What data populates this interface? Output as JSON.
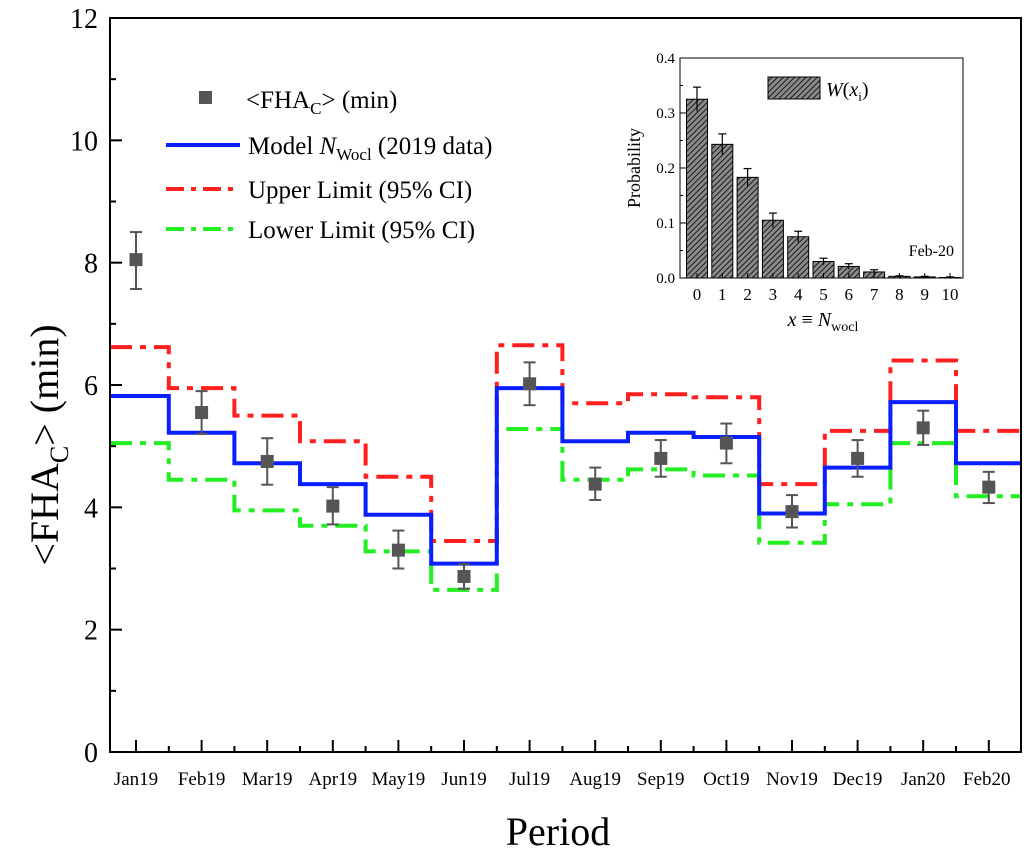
{
  "chart_data": [
    {
      "type": "line",
      "categories": [
        "Jan19",
        "Feb19",
        "Mar19",
        "Apr19",
        "May19",
        "Jun19",
        "Jul19",
        "Aug19",
        "Sep19",
        "Oct19",
        "Nov19",
        "Dec19",
        "Jan20",
        "Feb20"
      ],
      "xlabel": "Period",
      "ylabel_main": "<FHA",
      "ylabel_sub": "C",
      "ylabel_tail": "> (min)",
      "ylim": [
        0,
        12
      ],
      "yticks": [
        "0",
        "2",
        "4",
        "6",
        "8",
        "10",
        "12"
      ],
      "step_style": "steps-mid",
      "series": [
        {
          "name_main": "<FHA",
          "name_sub": "C",
          "name_tail": "> (min)",
          "kind": "points",
          "color": "#555555",
          "values": [
            8.05,
            5.55,
            4.75,
            4.02,
            3.3,
            2.87,
            6.02,
            4.38,
            4.8,
            5.05,
            3.93,
            4.8,
            5.3,
            4.33
          ],
          "err_low": [
            7.57,
            5.2,
            4.37,
            3.72,
            3.0,
            2.67,
            5.67,
            4.12,
            4.5,
            4.72,
            3.67,
            4.5,
            5.02,
            4.07
          ],
          "err_high": [
            8.5,
            5.9,
            5.13,
            4.33,
            3.62,
            3.07,
            6.37,
            4.65,
            5.1,
            5.37,
            4.2,
            5.1,
            5.58,
            4.58
          ]
        },
        {
          "name_main": "Model ",
          "name_italic": "N",
          "name_sub": "Wocl",
          "name_tail": " (2019 data)",
          "kind": "step",
          "color": "#0a1fff",
          "dash": "solid",
          "values": [
            5.82,
            5.22,
            4.72,
            4.38,
            3.88,
            3.08,
            5.95,
            5.08,
            5.22,
            5.15,
            3.9,
            4.65,
            5.72,
            4.72
          ]
        },
        {
          "name_main": "Upper Limit (95% CI)",
          "kind": "step",
          "color": "#ff1f1f",
          "dash": "dashdot",
          "values": [
            6.62,
            5.95,
            5.5,
            5.08,
            4.5,
            3.45,
            6.65,
            5.7,
            5.85,
            5.8,
            4.38,
            5.25,
            6.4,
            5.25
          ]
        },
        {
          "name_main": "Lower Limit (95% CI)",
          "kind": "step",
          "color": "#22ee22",
          "dash": "dashdot",
          "values": [
            5.05,
            4.45,
            3.95,
            3.7,
            3.28,
            2.65,
            5.28,
            4.45,
            4.62,
            4.52,
            3.42,
            4.05,
            5.05,
            4.18
          ]
        }
      ]
    },
    {
      "type": "bar",
      "inset": true,
      "categories": [
        "0",
        "1",
        "2",
        "3",
        "4",
        "5",
        "6",
        "7",
        "8",
        "9",
        "10"
      ],
      "values": [
        0.325,
        0.243,
        0.183,
        0.105,
        0.075,
        0.03,
        0.021,
        0.011,
        0.003,
        0.002,
        0.001
      ],
      "err": [
        0.022,
        0.019,
        0.016,
        0.013,
        0.01,
        0.006,
        0.005,
        0.004,
        0.001,
        0.001,
        0.001
      ],
      "ylabel": "Probability",
      "xlabel_italic": "x",
      "xlabel_mid": " ≡ ",
      "xlabel_italic2": "N",
      "xlabel_sub": "wocl",
      "ylim": [
        0,
        0.4
      ],
      "yticks": [
        "0.0",
        "0.1",
        "0.2",
        "0.3",
        "0.4"
      ],
      "legend_italic": "W",
      "legend_mid": "(",
      "legend_italic2": "x",
      "legend_sub": "i",
      "legend_tail": ")",
      "annotation": "Feb-20",
      "bar_color": "#444444"
    }
  ]
}
